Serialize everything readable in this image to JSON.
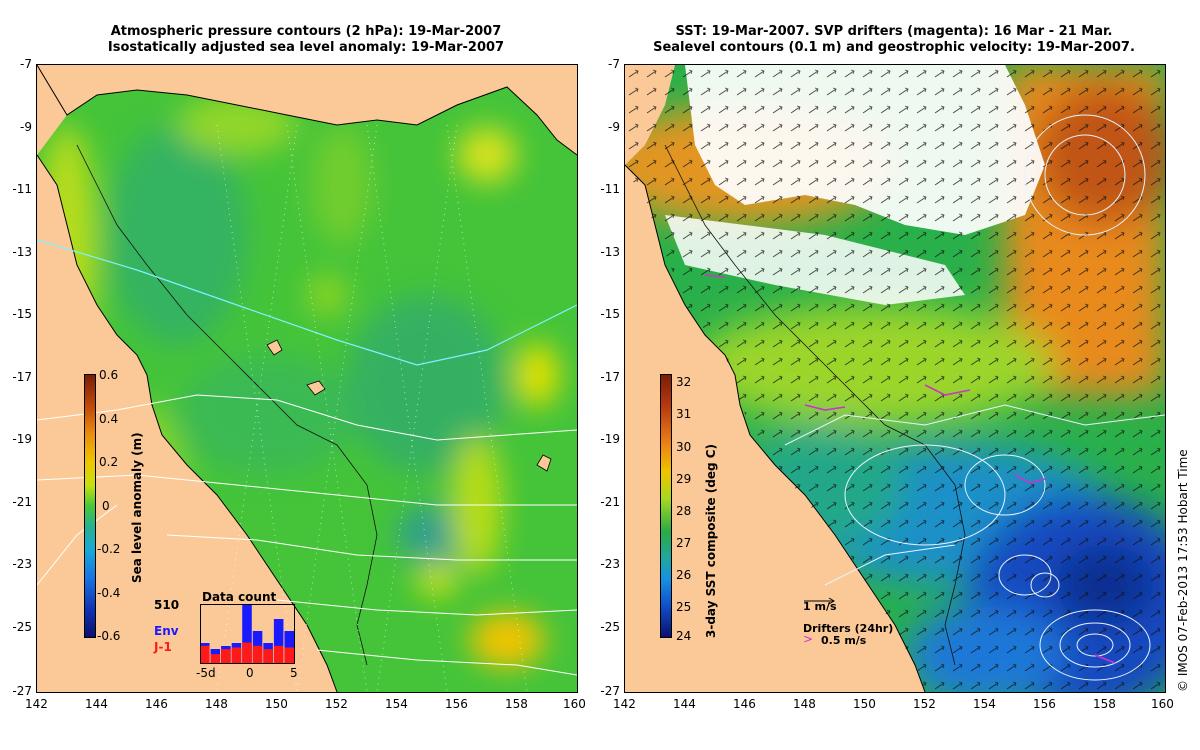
{
  "left_panel": {
    "title_line1": "Atmospheric pressure contours (2 hPa): 19-Mar-2007",
    "title_line2": "Isostatically adjusted sea level anomaly: 19-Mar-2007",
    "x_ticks": [
      "142",
      "144",
      "146",
      "148",
      "150",
      "152",
      "154",
      "156",
      "158",
      "160"
    ],
    "y_ticks": [
      "-7",
      "-9",
      "-11",
      "-13",
      "-15",
      "-17",
      "-19",
      "-21",
      "-23",
      "-25",
      "-27"
    ],
    "colorbar": {
      "label": "Sea level anomaly (m)",
      "ticks": [
        "0.6",
        "0.4",
        "0.2",
        "0",
        "-0.2",
        "-0.4",
        "-0.6"
      ]
    },
    "inset": {
      "title": "Data count",
      "count": "510",
      "legend_env": "Env",
      "legend_j1": "J-1",
      "x_labels": [
        "-5d",
        "0",
        "5"
      ],
      "env_color": "#1a1aff",
      "j1_color": "#ff1a1a",
      "env_counts": [
        0.35,
        0.25,
        0.3,
        0.35,
        1.0,
        0.55,
        0.35,
        0.75,
        0.55
      ],
      "j1_counts": [
        0.55,
        0.3,
        0.45,
        0.5,
        0.65,
        0.55,
        0.45,
        0.55,
        0.5
      ]
    }
  },
  "right_panel": {
    "title_line1": "SST: 19-Mar-2007. SVP drifters (magenta): 16 Mar - 21 Mar.",
    "title_line2": "Sealevel contours (0.1 m) and geostrophic velocity: 19-Mar-2007.",
    "x_ticks": [
      "142",
      "144",
      "146",
      "148",
      "150",
      "152",
      "154",
      "156",
      "158",
      "160"
    ],
    "y_ticks": [
      "-7",
      "-9",
      "-11",
      "-13",
      "-15",
      "-17",
      "-19",
      "-21",
      "-23",
      "-25",
      "-27"
    ],
    "colorbar": {
      "label": "3-day SST composite (deg C)",
      "ticks": [
        "32",
        "31",
        "30",
        "29",
        "28",
        "27",
        "26",
        "25",
        "24"
      ]
    },
    "velocity_legend": "1 m/s",
    "drifters_legend": "Drifters (24hr)",
    "drifters_speed": "0.5 m/s",
    "drifter_color": "#cc33cc"
  },
  "credit": "© IMOS 07-Feb-2013 17:53 Hobart Time",
  "colors": {
    "land": "#fbc997",
    "sea_green": "#4fcc2a",
    "sst_orange": "#e8891c"
  }
}
